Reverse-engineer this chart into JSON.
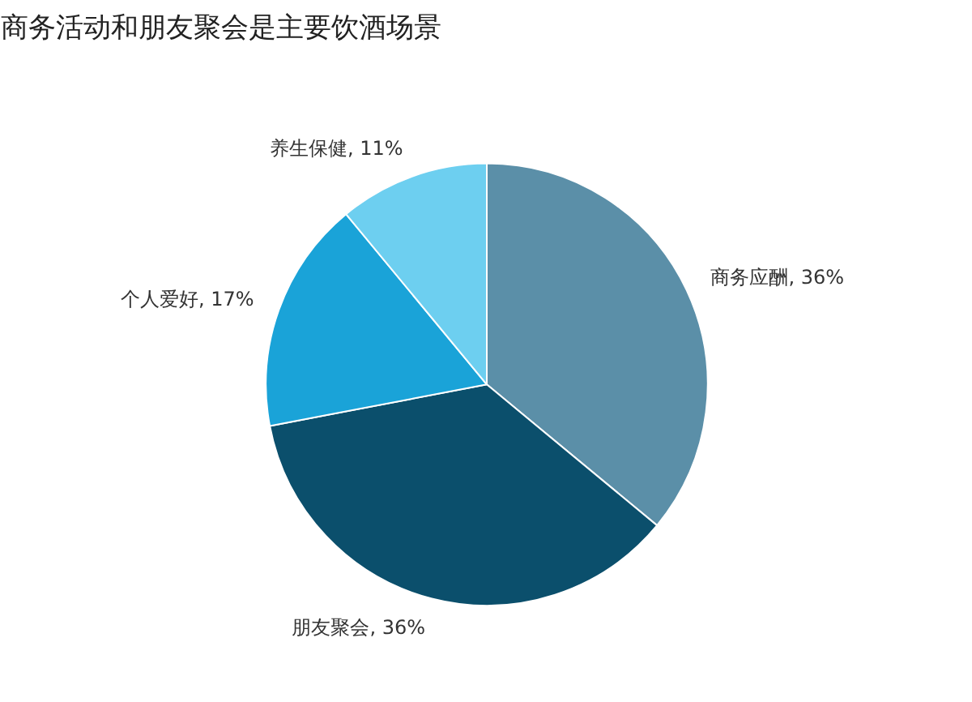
{
  "chart_data": {
    "type": "pie",
    "title": "商务活动和朋友聚会是主要饮酒场景",
    "categories": [
      "商务应酬",
      "朋友聚会",
      "个人爱好",
      "养生保健"
    ],
    "values": [
      36,
      36,
      17,
      11
    ],
    "value_labels": [
      "36%",
      "36%",
      "17%",
      "11%"
    ],
    "colors": [
      "#5b8fa8",
      "#0b4f6c",
      "#1aa3d8",
      "#6dcff0"
    ],
    "legend": false
  }
}
